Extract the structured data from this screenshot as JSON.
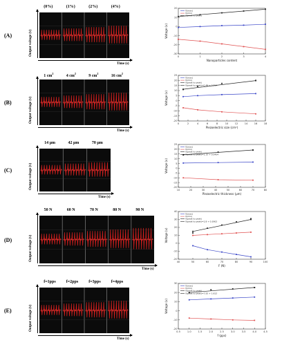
{
  "figure": {
    "y_axis_label": "Output voltage (v)",
    "x_axis_label": "Time (s)",
    "rows": [
      {
        "label": "(A)",
        "conditions": [
          "(0%)",
          "(1%)",
          "(2%)",
          "(4%)"
        ]
      },
      {
        "label": "(B)",
        "conditions": [
          "1 cm",
          "4 cm",
          "9 cm",
          "16 cm"
        ],
        "condition_superscript": "2"
      },
      {
        "label": "(C)",
        "conditions": [
          "14 μm",
          "42 μm",
          "70 μm"
        ]
      },
      {
        "label": "(D)",
        "conditions": [
          "50 N",
          "60 N",
          "70 N",
          "80 N",
          "90 N"
        ]
      },
      {
        "label": "(E)",
        "conditions": [
          "f=1pps",
          "f=2pps",
          "f=3pps",
          "f=4pps"
        ]
      }
    ]
  },
  "colors": {
    "scope_bg": "#0b0b0b",
    "scope_trace": "#e0201f",
    "pos_series": "#e05050",
    "neg_series": "#3a46c8",
    "fit_series": "#222222"
  },
  "chart_data": [
    {
      "type": "line",
      "xlabel": "Nanoparticles content",
      "ylabel": "Voltage (v)",
      "xlim": [
        0,
        4
      ],
      "ylim": [
        -30,
        20
      ],
      "x_ticks": [
        "0",
        "1",
        "2",
        "3",
        "4"
      ],
      "y_ticks": [
        "-30",
        "-20",
        "-10",
        "0",
        "10",
        "20"
      ],
      "series": [
        {
          "name": "V(max)",
          "x": [
            0,
            1,
            2,
            3,
            4
          ],
          "values": [
            -1,
            0,
            1,
            1.5,
            2.5
          ]
        },
        {
          "name": "V(min)",
          "x": [
            0,
            1,
            2,
            3,
            4
          ],
          "values": [
            -14,
            -16,
            -19,
            -22,
            -25
          ]
        },
        {
          "name": "V(peak to peak)",
          "x": [
            0,
            1,
            2,
            3,
            4
          ],
          "values": [
            11,
            13,
            15,
            17,
            19
          ]
        }
      ]
    },
    {
      "type": "line",
      "xlabel": "Piezoelectric size (cm²)",
      "ylabel": "Voltage (v)",
      "xlim": [
        0,
        18
      ],
      "ylim": [
        -20,
        25
      ],
      "x_ticks": [
        "0",
        "2",
        "4",
        "6",
        "8",
        "10",
        "12",
        "14",
        "16",
        "18"
      ],
      "y_ticks": [
        "-20",
        "-15",
        "-10",
        "-5",
        "0",
        "5",
        "10",
        "15",
        "20",
        "25"
      ],
      "series": [
        {
          "name": "V(max)",
          "x": [
            1,
            4,
            9,
            16
          ],
          "values": [
            4,
            5,
            6,
            7
          ]
        },
        {
          "name": "V(min)",
          "x": [
            1,
            4,
            9,
            16
          ],
          "values": [
            -7,
            -9,
            -11,
            -13
          ]
        },
        {
          "name": "V(peak to peak)",
          "x": [
            1,
            4,
            9,
            16
          ],
          "values": [
            11,
            14,
            17,
            20
          ]
        },
        {
          "name": "V(peak to peak)=0.48 + 0.214",
          "x": [
            1,
            16
          ],
          "values": [
            11.3,
            19.8
          ]
        }
      ]
    },
    {
      "type": "line",
      "xlabel": "Piezoelectric thickness (μm)",
      "ylabel": "Voltage (v)",
      "xlim": [
        10,
        80
      ],
      "ylim": [
        -20,
        25
      ],
      "x_ticks": [
        "10",
        "20",
        "30",
        "40",
        "50",
        "60",
        "70",
        "80"
      ],
      "y_ticks": [
        "-20",
        "-15",
        "-10",
        "-5",
        "0",
        "5",
        "10",
        "15",
        "20",
        "25"
      ],
      "series": [
        {
          "name": "V(max)",
          "x": [
            14,
            42,
            70
          ],
          "values": [
            5.5,
            6,
            6.5
          ]
        },
        {
          "name": "V(min)",
          "x": [
            14,
            42,
            70
          ],
          "values": [
            -10,
            -12,
            -12.5
          ]
        },
        {
          "name": "V(peak to peak)",
          "x": [
            14,
            42,
            70
          ],
          "values": [
            14,
            17,
            19
          ]
        },
        {
          "name": "V(peak to peak)=1.15 + 0.0454",
          "x": [
            14,
            70
          ],
          "values": [
            14.2,
            19.2
          ]
        }
      ]
    },
    {
      "type": "line",
      "xlabel": "F (N)",
      "ylabel": "Voltage (v)",
      "xlim": [
        40,
        100
      ],
      "ylim": [
        -20,
        40
      ],
      "x_ticks": [
        "40",
        "50",
        "60",
        "70",
        "80",
        "90",
        "100"
      ],
      "y_ticks": [
        "-20",
        "-10",
        "0",
        "10",
        "20",
        "30",
        "40"
      ],
      "series": [
        {
          "name": "V(max)",
          "x": [
            50,
            60,
            70,
            80,
            90
          ],
          "values": [
            -3,
            -8,
            -11,
            -14,
            -17
          ]
        },
        {
          "name": "V(min)",
          "x": [
            50,
            60,
            70,
            80,
            90
          ],
          "values": [
            10,
            11,
            12,
            13,
            14
          ]
        },
        {
          "name": "V(peak to peak)",
          "x": [
            50,
            60,
            70,
            80,
            90
          ],
          "values": [
            13,
            19,
            23,
            27,
            31
          ]
        },
        {
          "name": "V(peak to peak)=1.8 + 0.3902",
          "x": [
            50,
            90
          ],
          "values": [
            15,
            30
          ]
        }
      ]
    },
    {
      "type": "line",
      "xlabel": "f (pps)",
      "ylabel": "Voltage (v)",
      "xlim": [
        0.5,
        4.5
      ],
      "ylim": [
        -20,
        30
      ],
      "x_ticks": [
        "0.5",
        "1.0",
        "1.5",
        "2.0",
        "2.5",
        "3.0",
        "3.5",
        "4.0",
        "4.5"
      ],
      "y_ticks": [
        "-20",
        "-10",
        "0",
        "10",
        "20",
        "30"
      ],
      "series": [
        {
          "name": "V(max)",
          "x": [
            1,
            2,
            3,
            4
          ],
          "values": [
            12,
            13,
            14,
            15
          ]
        },
        {
          "name": "V(min)",
          "x": [
            1,
            2,
            3,
            4
          ],
          "values": [
            -8,
            -9,
            -10,
            -10.5
          ]
        },
        {
          "name": "V(peak to peak)",
          "x": [
            1,
            2,
            3,
            4
          ],
          "values": [
            20,
            23,
            24,
            25.5
          ]
        },
        {
          "name": "V(peak to peak)=7.55 + 1.612",
          "x": [
            1,
            4
          ],
          "values": [
            20,
            25.5
          ]
        }
      ]
    }
  ]
}
